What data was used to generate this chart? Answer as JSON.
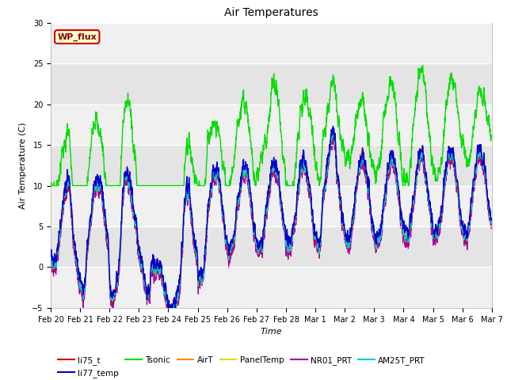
{
  "title": "Air Temperatures",
  "xlabel": "Time",
  "ylabel": "Air Temperature (C)",
  "ylim": [
    -5,
    30
  ],
  "xlim": [
    0,
    15
  ],
  "yticks": [
    -5,
    0,
    5,
    10,
    15,
    20,
    25,
    30
  ],
  "xtick_labels": [
    "Feb 20",
    "Feb 21",
    "Feb 22",
    "Feb 23",
    "Feb 24",
    "Feb 25",
    "Feb 26",
    "Feb 27",
    "Feb 28",
    "Mar 1",
    "Mar 2",
    "Mar 3",
    "Mar 4",
    "Mar 5",
    "Mar 6",
    "Mar 7"
  ],
  "series_colors": {
    "li75_t": "#cc0000",
    "li77_temp": "#0000cc",
    "Tsonic": "#00dd00",
    "AirT": "#ff8800",
    "PanelTemp": "#dddd00",
    "NR01_PRT": "#aa00aa",
    "AM25T_PRT": "#00cccc"
  },
  "legend_box": {
    "text": "WP_flux",
    "facecolor": "#ffffcc",
    "edgecolor": "#cc0000",
    "textcolor": "#880000"
  },
  "bg_color": "#ffffff",
  "plot_bg": "#f0f0f0",
  "band1": {
    "ymin": 5,
    "ymax": 10,
    "color": "#e8e8e8"
  },
  "band2": {
    "ymin": 15,
    "ymax": 20,
    "color": "#e8e8e8"
  },
  "band3": {
    "ymin": 25,
    "ymax": 30,
    "color": "#e8e8e8"
  },
  "grid_color": "#cccccc"
}
